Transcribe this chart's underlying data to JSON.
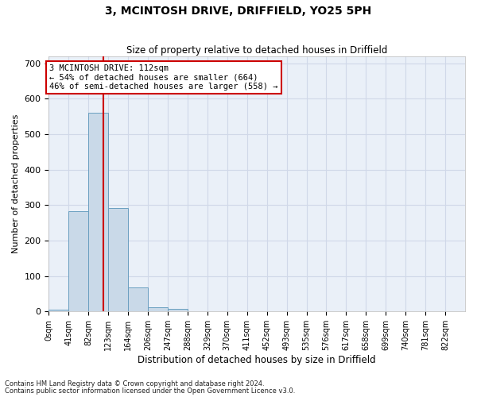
{
  "title": "3, MCINTOSH DRIVE, DRIFFIELD, YO25 5PH",
  "subtitle": "Size of property relative to detached houses in Driffield",
  "xlabel": "Distribution of detached houses by size in Driffield",
  "ylabel": "Number of detached properties",
  "footnote1": "Contains HM Land Registry data © Crown copyright and database right 2024.",
  "footnote2": "Contains public sector information licensed under the Open Government Licence v3.0.",
  "bin_labels": [
    "0sqm",
    "41sqm",
    "82sqm",
    "123sqm",
    "164sqm",
    "206sqm",
    "247sqm",
    "288sqm",
    "329sqm",
    "370sqm",
    "411sqm",
    "452sqm",
    "493sqm",
    "535sqm",
    "576sqm",
    "617sqm",
    "658sqm",
    "699sqm",
    "740sqm",
    "781sqm",
    "822sqm"
  ],
  "bar_values": [
    5,
    282,
    560,
    291,
    67,
    12,
    7,
    0,
    0,
    0,
    0,
    0,
    0,
    0,
    0,
    0,
    0,
    0,
    0,
    0
  ],
  "bar_color": "#c9d9e8",
  "bar_edgecolor": "#6a9fc0",
  "grid_color": "#d0d8e8",
  "bg_color": "#eaf0f8",
  "ylim_max": 720,
  "yticks": [
    0,
    100,
    200,
    300,
    400,
    500,
    600,
    700
  ],
  "property_line_color": "#cc0000",
  "annotation_line1": "3 MCINTOSH DRIVE: 112sqm",
  "annotation_line2": "← 54% of detached houses are smaller (664)",
  "annotation_line3": "46% of semi-detached houses are larger (558) →",
  "annotation_box_edgecolor": "#cc0000",
  "bin_width": 41,
  "property_sqm": 112,
  "n_bars": 20
}
